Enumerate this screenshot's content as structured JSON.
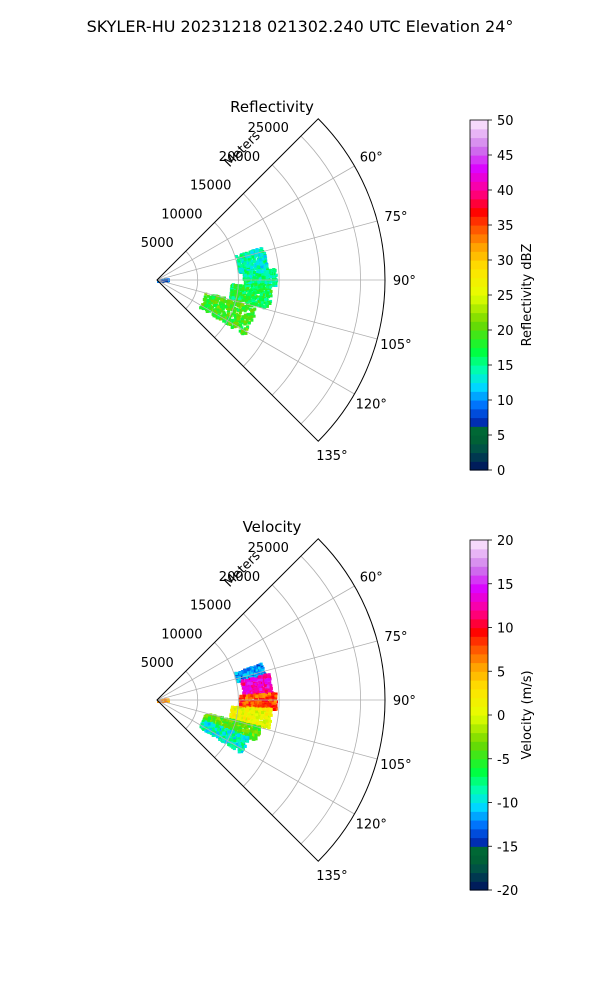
{
  "title": "SKYLER-HU  20231218  021302.240 UTC Elevation 24°",
  "chart_data": [
    {
      "type": "polar-sector",
      "title": "Reflectivity",
      "radial_label": "Meters",
      "radial_ticks": [
        "5000",
        "10000",
        "15000",
        "20000",
        "25000"
      ],
      "radial_values": [
        5000,
        10000,
        15000,
        20000,
        25000
      ],
      "r_max": 28000,
      "theta_range_deg": [
        45,
        135
      ],
      "theta_ticks": [
        "60°",
        "75°",
        "90°",
        "105°",
        "120°",
        "135°"
      ],
      "theta_values": [
        60,
        75,
        90,
        105,
        120,
        135
      ],
      "grid": true,
      "colorbar": {
        "label": "Reflectivity dBZ",
        "range": [
          0,
          50
        ],
        "ticks": [
          "0",
          "5",
          "10",
          "15",
          "20",
          "25",
          "30",
          "35",
          "40",
          "45",
          "50"
        ],
        "tick_values": [
          0,
          5,
          10,
          15,
          20,
          25,
          30,
          35,
          40,
          45,
          50
        ]
      },
      "field_clusters": [
        {
          "theta": [
            72,
            84
          ],
          "r": [
            10000,
            13500
          ],
          "value": 14
        },
        {
          "theta": [
            84,
            92
          ],
          "r": [
            10500,
            14500
          ],
          "value": 15
        },
        {
          "theta": [
            92,
            104
          ],
          "r": [
            9000,
            14000
          ],
          "value": 17
        },
        {
          "theta": [
            104,
            122
          ],
          "r": [
            6000,
            12500
          ],
          "value": 19
        },
        {
          "theta": [
            80,
            86
          ],
          "r": [
            0,
            1200
          ],
          "value": 8
        }
      ]
    },
    {
      "type": "polar-sector",
      "title": "Velocity",
      "radial_label": "Meters",
      "radial_ticks": [
        "5000",
        "10000",
        "15000",
        "20000",
        "25000"
      ],
      "radial_values": [
        5000,
        10000,
        15000,
        20000,
        25000
      ],
      "r_max": 28000,
      "theta_range_deg": [
        45,
        135
      ],
      "theta_ticks": [
        "60°",
        "75°",
        "90°",
        "105°",
        "120°",
        "135°"
      ],
      "theta_values": [
        60,
        75,
        90,
        105,
        120,
        135
      ],
      "grid": true,
      "colorbar": {
        "label": "Velocity (m/s)",
        "range": [
          -20,
          20
        ],
        "ticks": [
          "-20",
          "-15",
          "-10",
          "-5",
          "0",
          "5",
          "10",
          "15",
          "20"
        ],
        "tick_values": [
          -20,
          -15,
          -10,
          -5,
          0,
          5,
          10,
          15,
          20
        ]
      },
      "field_clusters": [
        {
          "theta": [
            70,
            76
          ],
          "r": [
            10000,
            13500
          ],
          "value": -12
        },
        {
          "theta": [
            76,
            86
          ],
          "r": [
            10500,
            14000
          ],
          "value": 13
        },
        {
          "theta": [
            86,
            94
          ],
          "r": [
            10000,
            14500
          ],
          "value": 8
        },
        {
          "theta": [
            94,
            104
          ],
          "r": [
            9000,
            14000
          ],
          "value": 1
        },
        {
          "theta": [
            104,
            112
          ],
          "r": [
            6000,
            13000
          ],
          "value": -4
        },
        {
          "theta": [
            112,
            122
          ],
          "r": [
            6000,
            12000
          ],
          "value": -9
        },
        {
          "theta": [
            80,
            88
          ],
          "r": [
            0,
            1200
          ],
          "value": 6
        }
      ]
    }
  ]
}
